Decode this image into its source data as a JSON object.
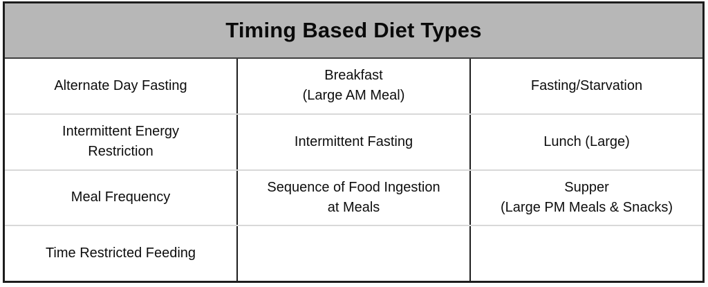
{
  "table": {
    "title": "Timing Based Diet Types",
    "rows": [
      [
        "Alternate Day Fasting",
        "Breakfast\n(Large AM Meal)",
        "Fasting/Starvation"
      ],
      [
        "Intermittent Energy\nRestriction",
        "Intermittent Fasting",
        "Lunch (Large)"
      ],
      [
        "Meal Frequency",
        "Sequence of Food Ingestion\nat Meals",
        "Supper\n(Large PM Meals & Snacks)"
      ],
      [
        "Time Restricted Feeding",
        "",
        ""
      ]
    ],
    "colors": {
      "header_bg": "#b7b7b7",
      "text": "#0d0d0d",
      "outer_border": "#1c1c1c",
      "column_divider": "#1c1c1c",
      "row_divider": "#d8d8d8"
    }
  }
}
